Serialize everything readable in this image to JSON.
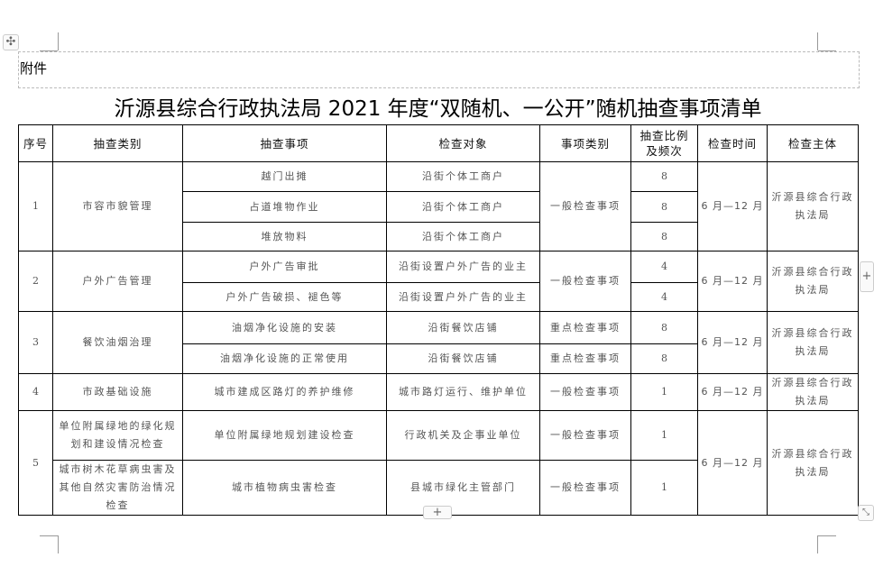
{
  "attachment_label": "附件",
  "title": "沂源县综合行政执法局 2021 年度“双随机、一公开”随机抽查事项清单",
  "headers": [
    "序号",
    "抽查类别",
    "抽查事项",
    "检查对象",
    "事项类别",
    "抽查比例及频次",
    "检查时间",
    "检查主体"
  ],
  "groups": [
    {
      "no": "1",
      "category": "市容市貌管理",
      "type": "一般检查事项",
      "time": "6 月—12 月",
      "agency": "沂源县综合行政执法局",
      "items": [
        {
          "item": "越门出摊",
          "target": "沿街个体工商户",
          "ratio": "8"
        },
        {
          "item": "占道堆物作业",
          "target": "沿街个体工商户",
          "ratio": "8"
        },
        {
          "item": "堆放物料",
          "target": "沿街个体工商户",
          "ratio": "8"
        }
      ]
    },
    {
      "no": "2",
      "category": "户外广告管理",
      "type": "一般检查事项",
      "time": "6 月—12 月",
      "agency": "沂源县综合行政执法局",
      "items": [
        {
          "item": "户外广告审批",
          "target": "沿街设置户外广告的业主",
          "ratio": "4"
        },
        {
          "item": "户外广告破损、褪色等",
          "target": "沿街设置户外广告的业主",
          "ratio": "4"
        }
      ]
    },
    {
      "no": "3",
      "category": "餐饮油烟治理",
      "time": "6 月—12 月",
      "agency": "沂源县综合行政执法局",
      "items": [
        {
          "item": "油烟净化设施的安装",
          "target": "沿街餐饮店铺",
          "type": "重点检查事项",
          "ratio": "8"
        },
        {
          "item": "油烟净化设施的正常使用",
          "target": "沿街餐饮店铺",
          "type": "重点检查事项",
          "ratio": "8"
        }
      ]
    },
    {
      "no": "4",
      "category": "市政基础设施",
      "time": "6 月—12 月",
      "agency": "沂源县综合行政执法局",
      "items": [
        {
          "item": "城市建成区路灯的养护维修",
          "target": "城市路灯运行、维护单位",
          "type": "一般检查事项",
          "ratio": "1"
        }
      ]
    },
    {
      "no": "5",
      "time": "6 月—12 月",
      "agency": "沂源县综合行政执法局",
      "items": [
        {
          "category": "单位附属绿地的绿化规划和建设情况检查",
          "item": "单位附属绿地规划建设检查",
          "target": "行政机关及企事业单位",
          "type": "一般检查事项",
          "ratio": "1"
        },
        {
          "category": "城市树木花草病虫害及其他自然灾害防治情况检查",
          "item": "城市植物病虫害检查",
          "target": "县城市绿化主管部门",
          "type": "一般检查事项",
          "ratio": "1"
        }
      ]
    }
  ],
  "icons": {
    "move": "move-handle-icon",
    "add": "plus-icon",
    "resize": "resize-icon"
  }
}
